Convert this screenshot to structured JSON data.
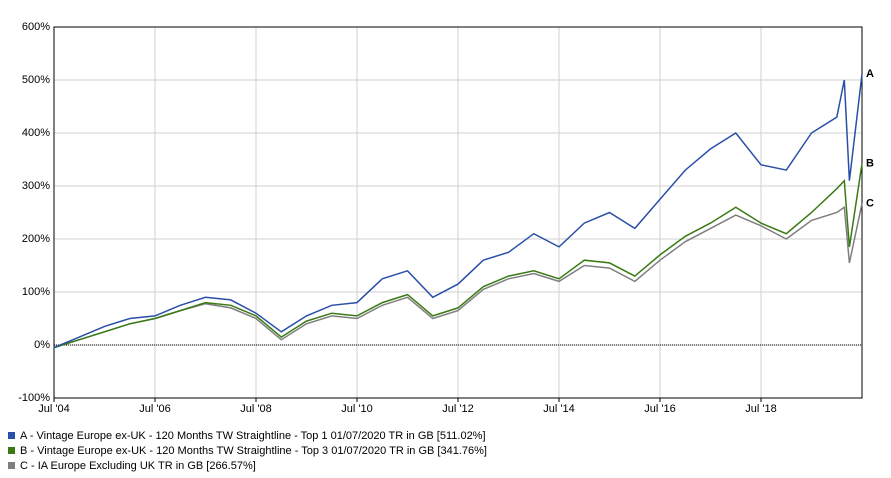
{
  "chart_data": {
    "type": "line",
    "x": [
      2004.5,
      2005.0,
      2005.5,
      2006.0,
      2006.5,
      2007.0,
      2007.5,
      2008.0,
      2008.5,
      2009.0,
      2009.5,
      2010.0,
      2010.5,
      2011.0,
      2011.5,
      2012.0,
      2012.5,
      2013.0,
      2013.5,
      2014.0,
      2014.5,
      2015.0,
      2015.5,
      2016.0,
      2016.5,
      2017.0,
      2017.5,
      2018.0,
      2018.5,
      2019.0,
      2019.5,
      2020.0,
      2020.15,
      2020.25,
      2020.5
    ],
    "series": [
      {
        "name": "A - Vintage Europe ex-UK - 120 Months TW Straightline - Top 1 01/07/2020 TR in GB [511.02%]",
        "end_label": "A",
        "color": "#2a4fa8",
        "values": [
          -5,
          15,
          35,
          50,
          55,
          75,
          90,
          85,
          60,
          25,
          55,
          75,
          80,
          125,
          140,
          90,
          115,
          160,
          175,
          210,
          185,
          230,
          250,
          220,
          275,
          330,
          370,
          400,
          340,
          330,
          400,
          430,
          500,
          310,
          511
        ]
      },
      {
        "name": "B - Vintage Europe ex-UK - 120 Months TW Straightline - Top 3 01/07/2020 TR in GB [341.76%]",
        "end_label": "B",
        "color": "#3a7a14",
        "values": [
          -5,
          10,
          25,
          40,
          50,
          65,
          80,
          75,
          55,
          15,
          45,
          60,
          55,
          80,
          95,
          55,
          70,
          110,
          130,
          140,
          125,
          160,
          155,
          130,
          170,
          205,
          230,
          260,
          230,
          210,
          250,
          295,
          310,
          185,
          342
        ]
      },
      {
        "name": "C - IA Europe Excluding UK TR in GB [266.57%]",
        "end_label": "C",
        "color": "#7f7f7f",
        "values": [
          -5,
          10,
          25,
          40,
          50,
          65,
          78,
          70,
          50,
          10,
          40,
          55,
          50,
          75,
          90,
          50,
          65,
          105,
          125,
          135,
          120,
          150,
          145,
          120,
          160,
          195,
          220,
          245,
          225,
          200,
          235,
          250,
          260,
          155,
          267
        ]
      }
    ],
    "xlim": [
      2004.5,
      2020.5
    ],
    "xticks": [
      {
        "value": 2004.5,
        "label": "Jul '04"
      },
      {
        "value": 2006.5,
        "label": "Jul '06"
      },
      {
        "value": 2008.5,
        "label": "Jul '08"
      },
      {
        "value": 2010.5,
        "label": "Jul '10"
      },
      {
        "value": 2012.5,
        "label": "Jul '12"
      },
      {
        "value": 2014.5,
        "label": "Jul '14"
      },
      {
        "value": 2016.5,
        "label": "Jul '16"
      },
      {
        "value": 2018.5,
        "label": "Jul '18"
      }
    ],
    "ylim": [
      -100,
      600
    ],
    "yticks": [
      {
        "value": -100,
        "label": "-100%"
      },
      {
        "value": 0,
        "label": "0%"
      },
      {
        "value": 100,
        "label": "100%"
      },
      {
        "value": 200,
        "label": "200%"
      },
      {
        "value": 300,
        "label": "300%"
      },
      {
        "value": 400,
        "label": "400%"
      },
      {
        "value": 500,
        "label": "500%"
      },
      {
        "value": 600,
        "label": "600%"
      }
    ],
    "grid": true
  }
}
